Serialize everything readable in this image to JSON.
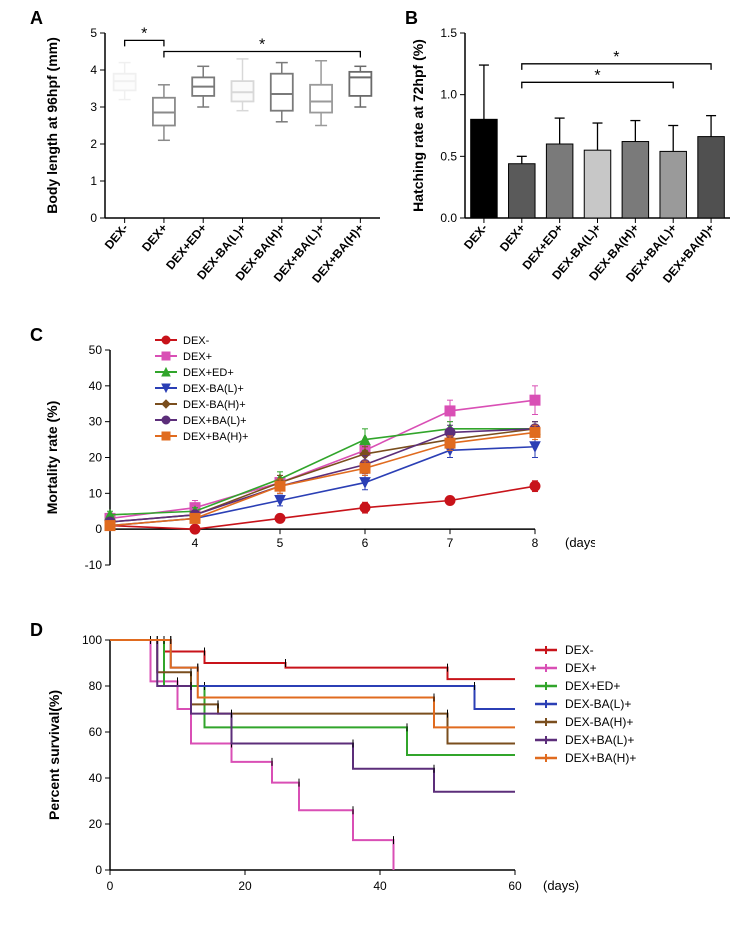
{
  "labels": {
    "A": "A",
    "B": "B",
    "C": "C",
    "D": "D",
    "yA": "Body length at 96hpf (mm)",
    "yB": "Hatching rate at 72hpf (%)",
    "yC": "Mortality rate (%)",
    "yD": "Percent survival(%)",
    "xCD": "(days)"
  },
  "groups": [
    "DEX-",
    "DEX+",
    "DEX+ED+",
    "DEX-BA(L)+",
    "DEX-BA(H)+",
    "DEX+BA(L)+",
    "DEX+BA(H)+"
  ],
  "panelA": {
    "ylim": [
      0,
      5
    ],
    "yticks": [
      0,
      1,
      2,
      3,
      4,
      5
    ],
    "axis_color": "#000000",
    "tick_fontsize": 12,
    "label_fontsize": 14,
    "boxes": [
      {
        "min": 3.2,
        "q1": 3.45,
        "med": 3.7,
        "q3": 3.9,
        "max": 4.2,
        "color": "#f0f0f0",
        "fill": "#fcfcfc"
      },
      {
        "min": 2.1,
        "q1": 2.5,
        "med": 2.85,
        "q3": 3.25,
        "max": 3.6,
        "color": "#8a8a8a",
        "fill": "#ffffff"
      },
      {
        "min": 3.0,
        "q1": 3.3,
        "med": 3.55,
        "q3": 3.8,
        "max": 4.1,
        "color": "#7a7a7a",
        "fill": "#ffffff"
      },
      {
        "min": 2.9,
        "q1": 3.15,
        "med": 3.4,
        "q3": 3.7,
        "max": 4.3,
        "color": "#d8d8d8",
        "fill": "#fafafa"
      },
      {
        "min": 2.6,
        "q1": 2.9,
        "med": 3.35,
        "q3": 3.9,
        "max": 4.2,
        "color": "#7a7a7a",
        "fill": "#ffffff"
      },
      {
        "min": 2.5,
        "q1": 2.85,
        "med": 3.15,
        "q3": 3.6,
        "max": 4.25,
        "color": "#9a9a9a",
        "fill": "#ffffff"
      },
      {
        "min": 3.0,
        "q1": 3.3,
        "med": 3.8,
        "q3": 3.95,
        "max": 4.1,
        "color": "#6a6a6a",
        "fill": "#ffffff"
      }
    ],
    "sig": [
      {
        "from": 0,
        "to": 1,
        "y": 4.8,
        "text": "*"
      },
      {
        "from": 1,
        "to": 6,
        "y": 4.5,
        "text": "*"
      }
    ]
  },
  "panelB": {
    "ylim": [
      0,
      1.5
    ],
    "yticks": [
      0.0,
      0.5,
      1.0,
      1.5
    ],
    "bars": [
      {
        "val": 0.8,
        "err": 0.44,
        "fill": "#000000"
      },
      {
        "val": 0.44,
        "err": 0.06,
        "fill": "#5a5a5a"
      },
      {
        "val": 0.6,
        "err": 0.21,
        "fill": "#7a7a7a"
      },
      {
        "val": 0.55,
        "err": 0.22,
        "fill": "#c7c7c7"
      },
      {
        "val": 0.62,
        "err": 0.17,
        "fill": "#7a7a7a"
      },
      {
        "val": 0.54,
        "err": 0.21,
        "fill": "#9a9a9a"
      },
      {
        "val": 0.66,
        "err": 0.17,
        "fill": "#505050"
      }
    ],
    "sig": [
      {
        "from": 1,
        "to": 5,
        "y": 1.1,
        "text": "*"
      },
      {
        "from": 1,
        "to": 6,
        "y": 1.25,
        "text": "*"
      }
    ],
    "axis_color": "#000000",
    "tick_fontsize": 12,
    "label_fontsize": 14,
    "bar_width": 0.7
  },
  "panelC": {
    "xlim": [
      3,
      8
    ],
    "xticks": [
      4,
      5,
      6,
      7,
      8
    ],
    "ylim": [
      -10,
      50
    ],
    "yticks": [
      -10,
      0,
      10,
      20,
      30,
      40,
      50
    ],
    "axis_color": "#000000",
    "tick_fontsize": 12,
    "label_fontsize": 14,
    "marker_size": 5,
    "line_width": 1.6,
    "series": [
      {
        "name": "DEX-",
        "color": "#c8131a",
        "marker": "circle",
        "x": [
          3,
          4,
          5,
          6,
          7,
          8
        ],
        "y": [
          1,
          0,
          3,
          6,
          8,
          12
        ],
        "err": [
          1,
          1,
          1,
          1.5,
          1,
          1.5
        ]
      },
      {
        "name": "DEX+",
        "color": "#d94fb5",
        "marker": "square",
        "x": [
          3,
          4,
          5,
          6,
          7,
          8
        ],
        "y": [
          3,
          6,
          13,
          22,
          33,
          36
        ],
        "err": [
          1.5,
          2,
          2,
          3,
          3,
          4
        ]
      },
      {
        "name": "DEX+ED+",
        "color": "#31a52b",
        "marker": "triangle",
        "x": [
          3,
          4,
          5,
          6,
          7,
          8
        ],
        "y": [
          4,
          5,
          14,
          25,
          28,
          28
        ],
        "err": [
          1,
          1,
          2,
          3,
          2,
          2
        ]
      },
      {
        "name": "DEX-BA(L)+",
        "color": "#2b3fb5",
        "marker": "tridown",
        "x": [
          3,
          4,
          5,
          6,
          7,
          8
        ],
        "y": [
          1,
          3,
          8,
          13,
          22,
          23
        ],
        "err": [
          1,
          1,
          1.5,
          2,
          2,
          3
        ]
      },
      {
        "name": "DEX-BA(H)+",
        "color": "#7a4e1e",
        "marker": "diamond",
        "x": [
          3,
          4,
          5,
          6,
          7,
          8
        ],
        "y": [
          2,
          4,
          13,
          21,
          25,
          28
        ],
        "err": [
          1,
          1,
          2,
          2,
          2,
          2
        ]
      },
      {
        "name": "DEX+BA(L)+",
        "color": "#5c2e7a",
        "marker": "circle",
        "x": [
          3,
          4,
          5,
          6,
          7,
          8
        ],
        "y": [
          2,
          4,
          12,
          18,
          27,
          28
        ],
        "err": [
          1,
          1,
          2,
          2.5,
          2,
          2
        ]
      },
      {
        "name": "DEX+BA(H)+",
        "color": "#e06b1f",
        "marker": "square",
        "x": [
          3,
          4,
          5,
          6,
          7,
          8
        ],
        "y": [
          1,
          3,
          12,
          17,
          24,
          27
        ],
        "err": [
          1,
          1,
          2,
          2,
          2,
          2
        ]
      }
    ]
  },
  "panelD": {
    "xlim": [
      0,
      60
    ],
    "xticks": [
      0,
      20,
      40,
      60
    ],
    "ylim": [
      0,
      100
    ],
    "yticks": [
      0,
      20,
      40,
      60,
      80,
      100
    ],
    "axis_color": "#000000",
    "tick_fontsize": 12,
    "label_fontsize": 14,
    "line_width": 2,
    "series": [
      {
        "name": "DEX-",
        "color": "#c8131a",
        "steps": [
          [
            0,
            100
          ],
          [
            8,
            100
          ],
          [
            8,
            95
          ],
          [
            14,
            95
          ],
          [
            14,
            90
          ],
          [
            26,
            90
          ],
          [
            26,
            88
          ],
          [
            50,
            88
          ],
          [
            50,
            83
          ],
          [
            60,
            83
          ]
        ]
      },
      {
        "name": "DEX+",
        "color": "#d94fb5",
        "steps": [
          [
            0,
            100
          ],
          [
            6,
            100
          ],
          [
            6,
            82
          ],
          [
            10,
            82
          ],
          [
            10,
            70
          ],
          [
            12,
            70
          ],
          [
            12,
            55
          ],
          [
            18,
            55
          ],
          [
            18,
            47
          ],
          [
            24,
            47
          ],
          [
            24,
            38
          ],
          [
            28,
            38
          ],
          [
            28,
            26
          ],
          [
            36,
            26
          ],
          [
            36,
            13
          ],
          [
            42,
            13
          ],
          [
            42,
            0
          ]
        ]
      },
      {
        "name": "DEX+ED+",
        "color": "#31a52b",
        "steps": [
          [
            0,
            100
          ],
          [
            8,
            100
          ],
          [
            8,
            80
          ],
          [
            14,
            80
          ],
          [
            14,
            62
          ],
          [
            22,
            62
          ],
          [
            22,
            62
          ],
          [
            44,
            62
          ],
          [
            44,
            50
          ],
          [
            60,
            50
          ]
        ]
      },
      {
        "name": "DEX-BA(L)+",
        "color": "#2b3fb5",
        "steps": [
          [
            0,
            100
          ],
          [
            9,
            100
          ],
          [
            9,
            88
          ],
          [
            13,
            88
          ],
          [
            13,
            80
          ],
          [
            34,
            80
          ],
          [
            34,
            80
          ],
          [
            54,
            80
          ],
          [
            54,
            70
          ],
          [
            60,
            70
          ]
        ]
      },
      {
        "name": "DEX-BA(H)+",
        "color": "#7a4e1e",
        "steps": [
          [
            0,
            100
          ],
          [
            7,
            100
          ],
          [
            7,
            86
          ],
          [
            12,
            86
          ],
          [
            12,
            72
          ],
          [
            16,
            72
          ],
          [
            16,
            68
          ],
          [
            50,
            68
          ],
          [
            50,
            55
          ],
          [
            60,
            55
          ]
        ]
      },
      {
        "name": "DEX+BA(L)+",
        "color": "#5c2e7a",
        "steps": [
          [
            0,
            100
          ],
          [
            7,
            100
          ],
          [
            7,
            80
          ],
          [
            12,
            80
          ],
          [
            12,
            68
          ],
          [
            18,
            68
          ],
          [
            18,
            55
          ],
          [
            28,
            55
          ],
          [
            28,
            55
          ],
          [
            36,
            55
          ],
          [
            36,
            44
          ],
          [
            48,
            44
          ],
          [
            48,
            34
          ],
          [
            60,
            34
          ]
        ]
      },
      {
        "name": "DEX+BA(H)+",
        "color": "#e06b1f",
        "steps": [
          [
            0,
            100
          ],
          [
            9,
            100
          ],
          [
            9,
            88
          ],
          [
            13,
            88
          ],
          [
            13,
            75
          ],
          [
            20,
            75
          ],
          [
            20,
            75
          ],
          [
            48,
            75
          ],
          [
            48,
            62
          ],
          [
            60,
            62
          ]
        ]
      }
    ]
  }
}
